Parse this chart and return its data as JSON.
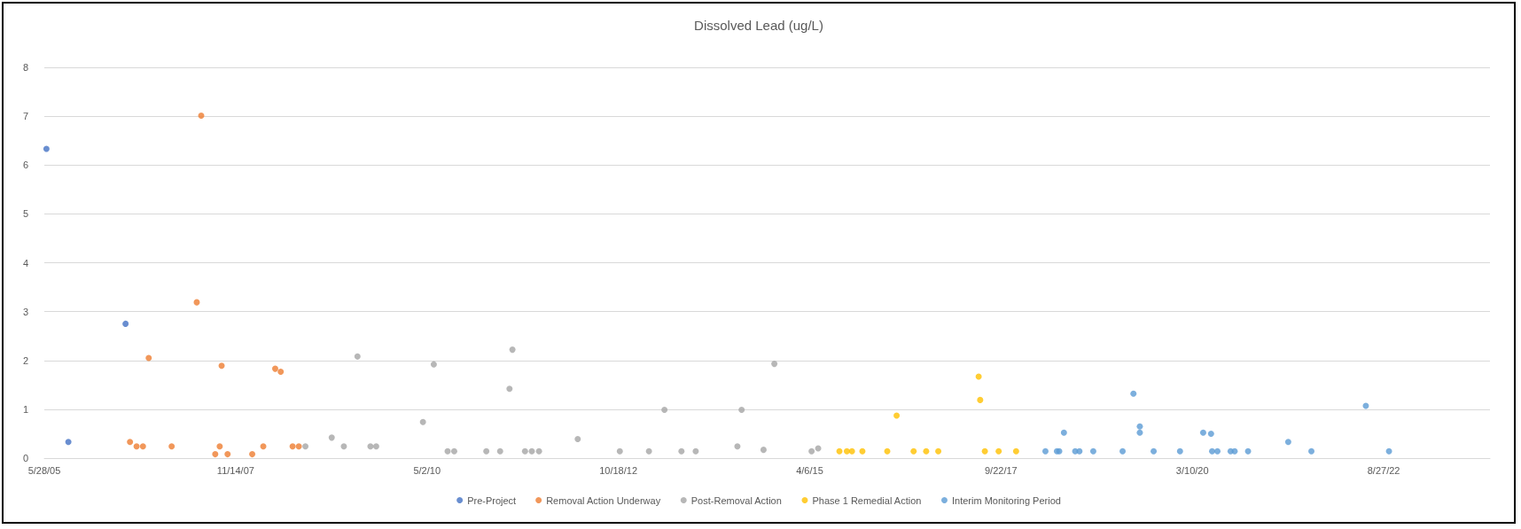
{
  "chart_data": {
    "type": "scatter",
    "title": "Dissolved Lead (ug/L)",
    "xlim": [
      "2005-05-28",
      "2024-01-09"
    ],
    "xticks": [
      {
        "value": "2005-05-28",
        "label": "5/28/05"
      },
      {
        "value": "2007-11-14",
        "label": "11/14/07"
      },
      {
        "value": "2010-05-02",
        "label": "5/2/10"
      },
      {
        "value": "2012-10-18",
        "label": "10/18/12"
      },
      {
        "value": "2015-04-06",
        "label": "4/6/15"
      },
      {
        "value": "2017-09-22",
        "label": "9/22/17"
      },
      {
        "value": "2020-03-10",
        "label": "3/10/20"
      },
      {
        "value": "2022-08-27",
        "label": "8/27/22"
      }
    ],
    "ylim": [
      0,
      8
    ],
    "yticks": [
      0,
      1,
      2,
      3,
      4,
      5,
      6,
      7,
      8
    ],
    "grid": "y",
    "legend": "bottom",
    "marker": "circle",
    "series": [
      {
        "name": "Pre-Project",
        "color": "#4472c4",
        "x": [
          "2005-06-07",
          "2005-09-18",
          "2006-06-14"
        ],
        "values": [
          6.33,
          0.33,
          2.75
        ]
      },
      {
        "name": "Removal Action Underway",
        "color": "#ed7d31",
        "x": [
          "2006-07-05",
          "2006-08-05",
          "2006-09-04",
          "2006-10-01",
          "2007-01-17",
          "2007-05-15",
          "2007-06-05",
          "2007-08-10",
          "2007-08-31",
          "2007-09-09",
          "2007-10-07",
          "2008-01-31",
          "2008-03-23",
          "2008-05-18",
          "2008-06-13",
          "2008-08-08",
          "2008-09-06"
        ],
        "values": [
          0.33,
          0.24,
          0.24,
          2.05,
          0.24,
          3.19,
          7.01,
          0.08,
          0.24,
          1.89,
          0.08,
          0.08,
          0.24,
          1.83,
          1.77,
          0.24,
          0.24
        ]
      },
      {
        "name": "Post-Removal Action",
        "color": "#a5a5a5",
        "x": [
          "2008-10-07",
          "2009-02-08",
          "2009-04-06",
          "2009-06-09",
          "2009-08-09",
          "2009-09-05",
          "2010-04-13",
          "2010-06-03",
          "2010-08-07",
          "2010-09-07",
          "2011-02-05",
          "2011-04-11",
          "2011-05-25",
          "2011-06-08",
          "2011-08-06",
          "2011-09-07",
          "2011-10-11",
          "2012-04-10",
          "2012-10-25",
          "2013-03-11",
          "2013-05-23",
          "2013-08-11",
          "2013-10-17",
          "2014-05-01",
          "2014-05-21",
          "2014-09-01",
          "2014-10-22",
          "2015-04-15",
          "2015-05-16"
        ],
        "values": [
          0.24,
          0.42,
          0.24,
          2.08,
          0.24,
          0.24,
          0.74,
          1.92,
          0.14,
          0.14,
          0.14,
          0.14,
          1.42,
          2.22,
          0.14,
          0.14,
          0.14,
          0.39,
          0.14,
          0.14,
          0.99,
          0.14,
          0.14,
          0.24,
          0.99,
          0.17,
          1.93,
          0.14,
          0.2
        ]
      },
      {
        "name": "Phase 1 Remedial Action",
        "color": "#ffc000",
        "x": [
          "2015-08-24",
          "2015-09-28",
          "2015-10-22",
          "2015-12-10",
          "2016-04-05",
          "2016-05-19",
          "2016-08-07",
          "2016-10-05",
          "2016-12-01",
          "2017-06-09",
          "2017-06-16",
          "2017-07-08",
          "2017-09-11",
          "2017-12-02"
        ],
        "values": [
          0.14,
          0.14,
          0.14,
          0.14,
          0.14,
          0.87,
          0.14,
          0.14,
          0.14,
          1.67,
          1.19,
          0.14,
          0.14,
          0.14
        ]
      },
      {
        "name": "Interim Monitoring Period",
        "color": "#5b9bd5",
        "x": [
          "2018-04-19",
          "2018-06-12",
          "2018-06-23",
          "2018-07-15",
          "2018-09-06",
          "2018-09-26",
          "2018-11-30",
          "2019-04-17",
          "2019-06-07",
          "2019-07-07",
          "2019-07-07",
          "2019-09-10",
          "2020-01-12",
          "2020-04-30",
          "2020-06-06",
          "2020-06-11",
          "2020-07-06",
          "2020-09-06",
          "2020-09-25",
          "2020-11-27",
          "2021-06-04",
          "2021-09-21",
          "2022-06-04",
          "2022-09-21"
        ],
        "values": [
          0.14,
          0.14,
          0.14,
          0.52,
          0.14,
          0.14,
          0.14,
          0.14,
          1.32,
          0.65,
          0.52,
          0.14,
          0.14,
          0.52,
          0.5,
          0.14,
          0.14,
          0.14,
          0.14,
          0.14,
          0.33,
          0.14,
          1.07,
          0.14
        ]
      }
    ]
  }
}
